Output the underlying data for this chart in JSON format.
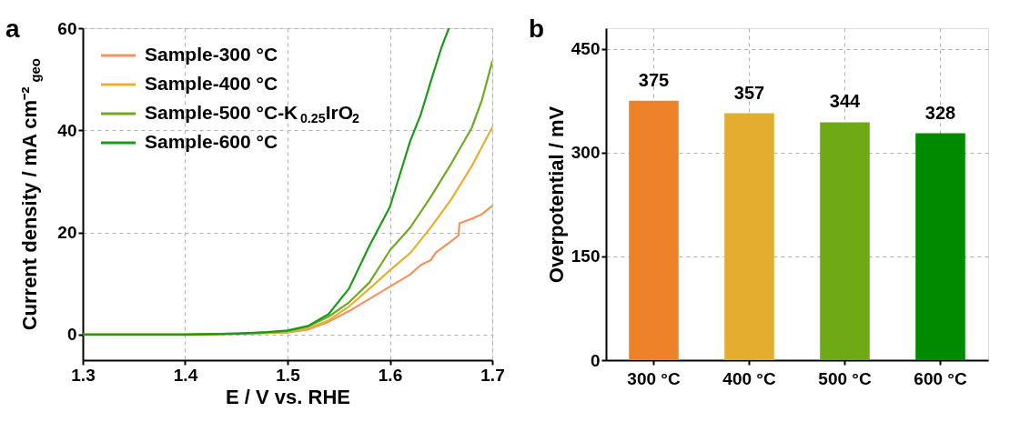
{
  "chart_data": [
    {
      "type": "line",
      "xlabel": "E / V vs. RHE",
      "ylabel": "Current density / mA cm⁻²$_{geo}$",
      "xlim": [
        1.3,
        1.7
      ],
      "xticks": [
        1.3,
        1.4,
        1.5,
        1.6,
        1.7
      ],
      "ylim": [
        -5,
        60
      ],
      "yticks": [
        0,
        20,
        40,
        60
      ],
      "grid": true,
      "legend": "top left",
      "annotations": [
        "a"
      ],
      "series": [
        {
          "name": "Sample-300 °C",
          "color": "#f4925e",
          "x": [
            1.3,
            1.4,
            1.45,
            1.48,
            1.5,
            1.52,
            1.54,
            1.56,
            1.58,
            1.6,
            1.62,
            1.63,
            1.64,
            1.645,
            1.66,
            1.667,
            1.668,
            1.68,
            1.69,
            1.7
          ],
          "values": [
            0,
            0,
            0.15,
            0.3,
            0.4,
            1.0,
            2.5,
            4.6,
            7,
            9.4,
            11.8,
            13.6,
            14.6,
            16.1,
            18.3,
            19.4,
            21.8,
            22.7,
            23.6,
            25.2
          ]
        },
        {
          "name": "Sample-400 °C",
          "color": "#e6b030",
          "x": [
            1.3,
            1.4,
            1.45,
            1.48,
            1.5,
            1.52,
            1.54,
            1.56,
            1.58,
            1.6,
            1.62,
            1.64,
            1.66,
            1.68,
            1.7
          ],
          "values": [
            0,
            0,
            0.2,
            0.35,
            0.5,
            1.2,
            2.8,
            5.5,
            9,
            12.6,
            16,
            21,
            26.5,
            33,
            40.6
          ]
        },
        {
          "name": "Sample-500 °C-K$_{0.25}$IrO$_{2}$",
          "color": "#6faa1f",
          "x": [
            1.3,
            1.4,
            1.45,
            1.48,
            1.5,
            1.52,
            1.54,
            1.56,
            1.58,
            1.6,
            1.62,
            1.64,
            1.66,
            1.68,
            1.69,
            1.7
          ],
          "values": [
            0,
            0,
            0.2,
            0.4,
            0.7,
            1.6,
            3.5,
            6.3,
            10.2,
            16.5,
            21,
            27,
            33.5,
            40.5,
            46,
            53.5
          ]
        },
        {
          "name": "Sample-600 °C",
          "color": "#1a9a1a",
          "x": [
            1.3,
            1.4,
            1.45,
            1.48,
            1.5,
            1.52,
            1.54,
            1.56,
            1.58,
            1.6,
            1.62,
            1.63,
            1.64,
            1.65,
            1.6576
          ],
          "values": [
            0,
            0,
            0.2,
            0.5,
            0.8,
            1.7,
            4,
            9,
            17.4,
            25,
            38,
            43,
            49.6,
            56,
            60
          ]
        }
      ]
    },
    {
      "type": "bar",
      "ylabel": "Overpotential / mV",
      "categories": [
        "300 °C",
        "400 °C",
        "500 °C",
        "600 °C"
      ],
      "values": [
        375,
        357,
        344,
        328
      ],
      "colors": [
        "#ee8229",
        "#e3ae30",
        "#6ea916",
        "#008a00"
      ],
      "ylim": [
        0,
        480
      ],
      "yticks": [
        0,
        150,
        300,
        450
      ],
      "grid": true,
      "data_labels": true,
      "annotations": [
        "b"
      ]
    }
  ]
}
